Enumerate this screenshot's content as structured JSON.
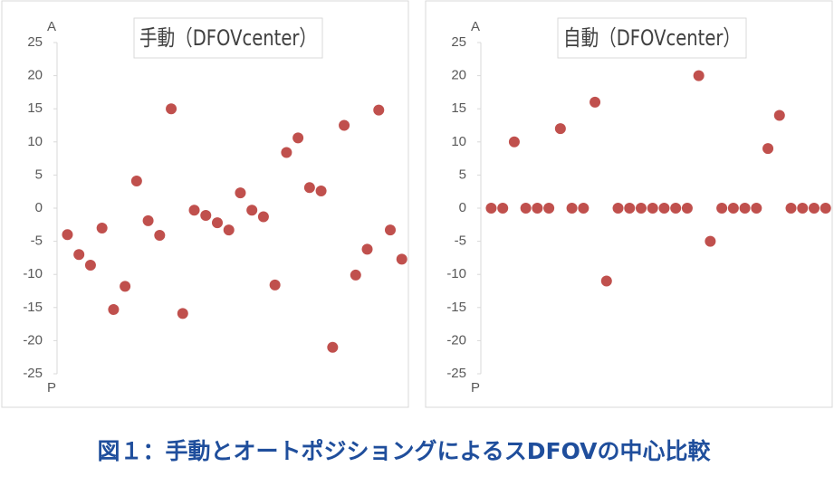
{
  "chart_data": [
    {
      "type": "scatter",
      "title": "手動（DFOVcenter）",
      "axis_label_top": "A",
      "axis_label_bottom": "P",
      "values": [
        -4,
        -7,
        -8.6,
        -3,
        -15.3,
        -11.8,
        4.1,
        -1.9,
        -4.1,
        15,
        -15.9,
        -0.3,
        -1.1,
        -2.2,
        -3.3,
        2.3,
        -0.3,
        -1.3,
        -11.6,
        8.4,
        10.6,
        3.1,
        2.6,
        -21,
        12.5,
        -10.1,
        -6.2,
        14.8,
        -3.3,
        -7.7
      ],
      "color": "#c0504d",
      "ylim": [
        -25,
        25
      ],
      "yticks": [
        -25,
        -20,
        -15,
        -10,
        -5,
        0,
        5,
        10,
        15,
        20,
        25
      ]
    },
    {
      "type": "scatter",
      "title": "自動（DFOVcenter）",
      "axis_label_top": "A",
      "axis_label_bottom": "P",
      "values": [
        0,
        0,
        10,
        0,
        0,
        0,
        12,
        0,
        0,
        16,
        -11,
        0,
        0,
        0,
        0,
        0,
        0,
        0,
        20,
        -5,
        0,
        0,
        0,
        0,
        9,
        14,
        0,
        0,
        0,
        0
      ],
      "color": "#c0504d",
      "ylim": [
        -25,
        25
      ],
      "yticks": [
        -25,
        -20,
        -15,
        -10,
        -5,
        0,
        5,
        10,
        15,
        20,
        25
      ]
    }
  ],
  "caption": "図１：手動とオートポジショングによるスDFOVの中心比較"
}
